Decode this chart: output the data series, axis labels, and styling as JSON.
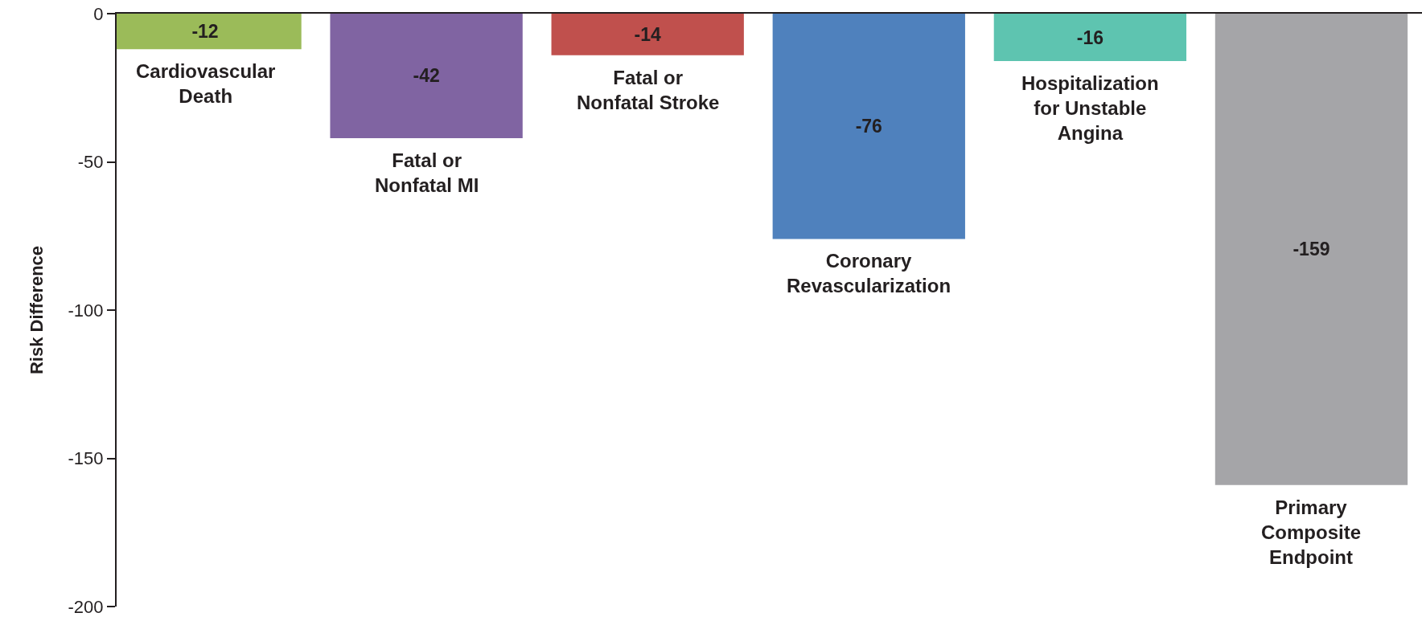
{
  "chart_data": {
    "type": "bar",
    "ylabel": "Risk Difference",
    "categories": [
      "Cardiovascular Death",
      "Fatal or Nonfatal MI",
      "Fatal or Nonfatal Stroke",
      "Coronary Revascularization",
      "Hospitalization for Unstable Angina",
      "Primary Composite Endpoint"
    ],
    "values": [
      -12,
      -42,
      -14,
      -76,
      -16,
      -159
    ],
    "colors": [
      "#9bbb59",
      "#8064a2",
      "#c0504d",
      "#4f81bd",
      "#5ec4b0",
      "#a5a5a8"
    ],
    "ylim": [
      -200,
      0
    ],
    "yticks": [
      -200,
      -150,
      -100,
      -50,
      0
    ],
    "grid": false,
    "legend": false,
    "data_labels": true,
    "tick_labels": "y"
  }
}
